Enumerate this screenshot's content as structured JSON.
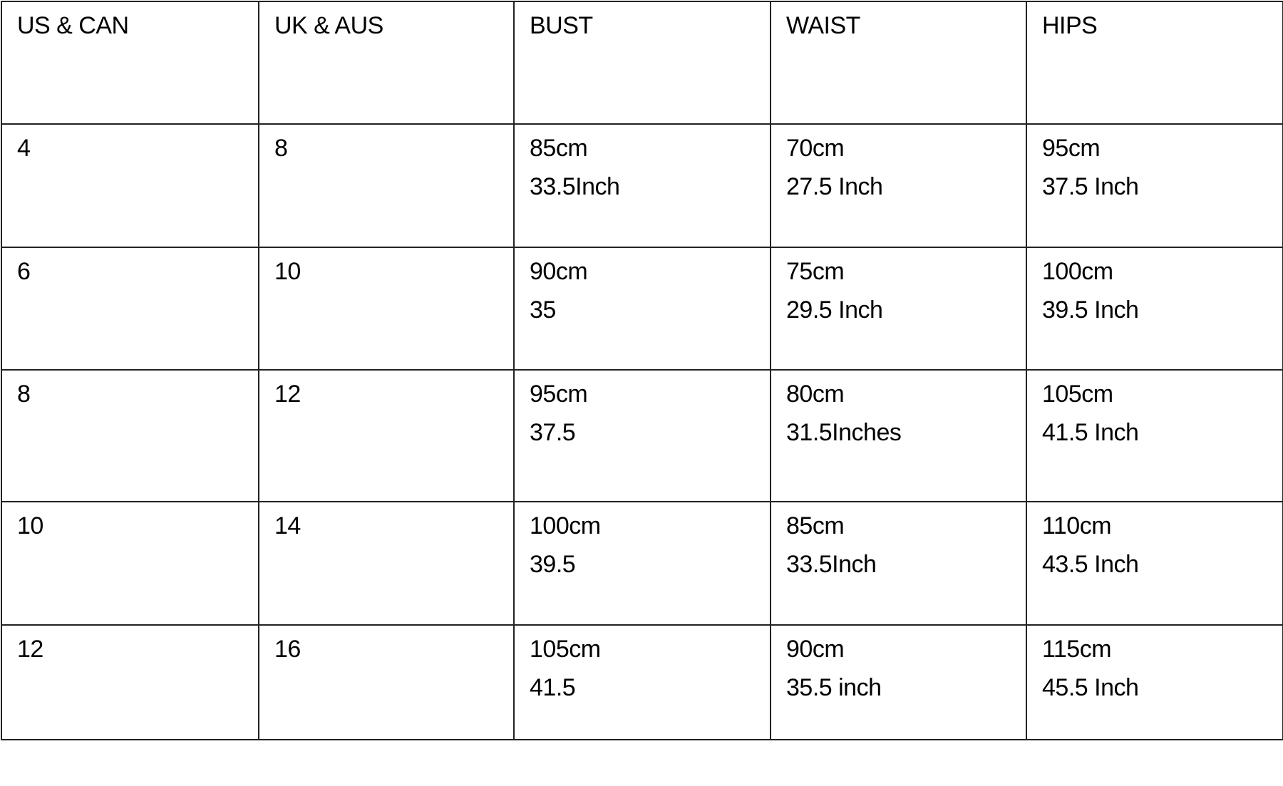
{
  "table": {
    "headers": [
      "US & CAN",
      "UK & AUS",
      "BUST",
      "WAIST",
      "HIPS"
    ],
    "rows": [
      {
        "us": "4",
        "uk": "8",
        "bust": [
          "85cm",
          "33.5Inch"
        ],
        "waist": [
          "70cm",
          "27.5 Inch"
        ],
        "hips": [
          "95cm",
          "37.5 Inch"
        ]
      },
      {
        "us": "6",
        "uk": "10",
        "bust": [
          "90cm",
          "35"
        ],
        "waist": [
          "75cm",
          "29.5 Inch"
        ],
        "hips": [
          "100cm",
          "39.5 Inch"
        ]
      },
      {
        "us": "8",
        "uk": "12",
        "bust": [
          "95cm",
          "37.5"
        ],
        "waist": [
          "80cm",
          "31.5Inches"
        ],
        "hips": [
          "105cm",
          "41.5 Inch"
        ]
      },
      {
        "us": "10",
        "uk": "14",
        "bust": [
          "100cm",
          "39.5"
        ],
        "waist": [
          "85cm",
          "33.5Inch"
        ],
        "hips": [
          "110cm",
          "43.5 Inch"
        ]
      },
      {
        "us": "12",
        "uk": "16",
        "bust": [
          "105cm",
          "41.5"
        ],
        "waist": [
          "90cm",
          "35.5 inch"
        ],
        "hips": [
          "115cm",
          "45.5 Inch"
        ]
      }
    ]
  }
}
